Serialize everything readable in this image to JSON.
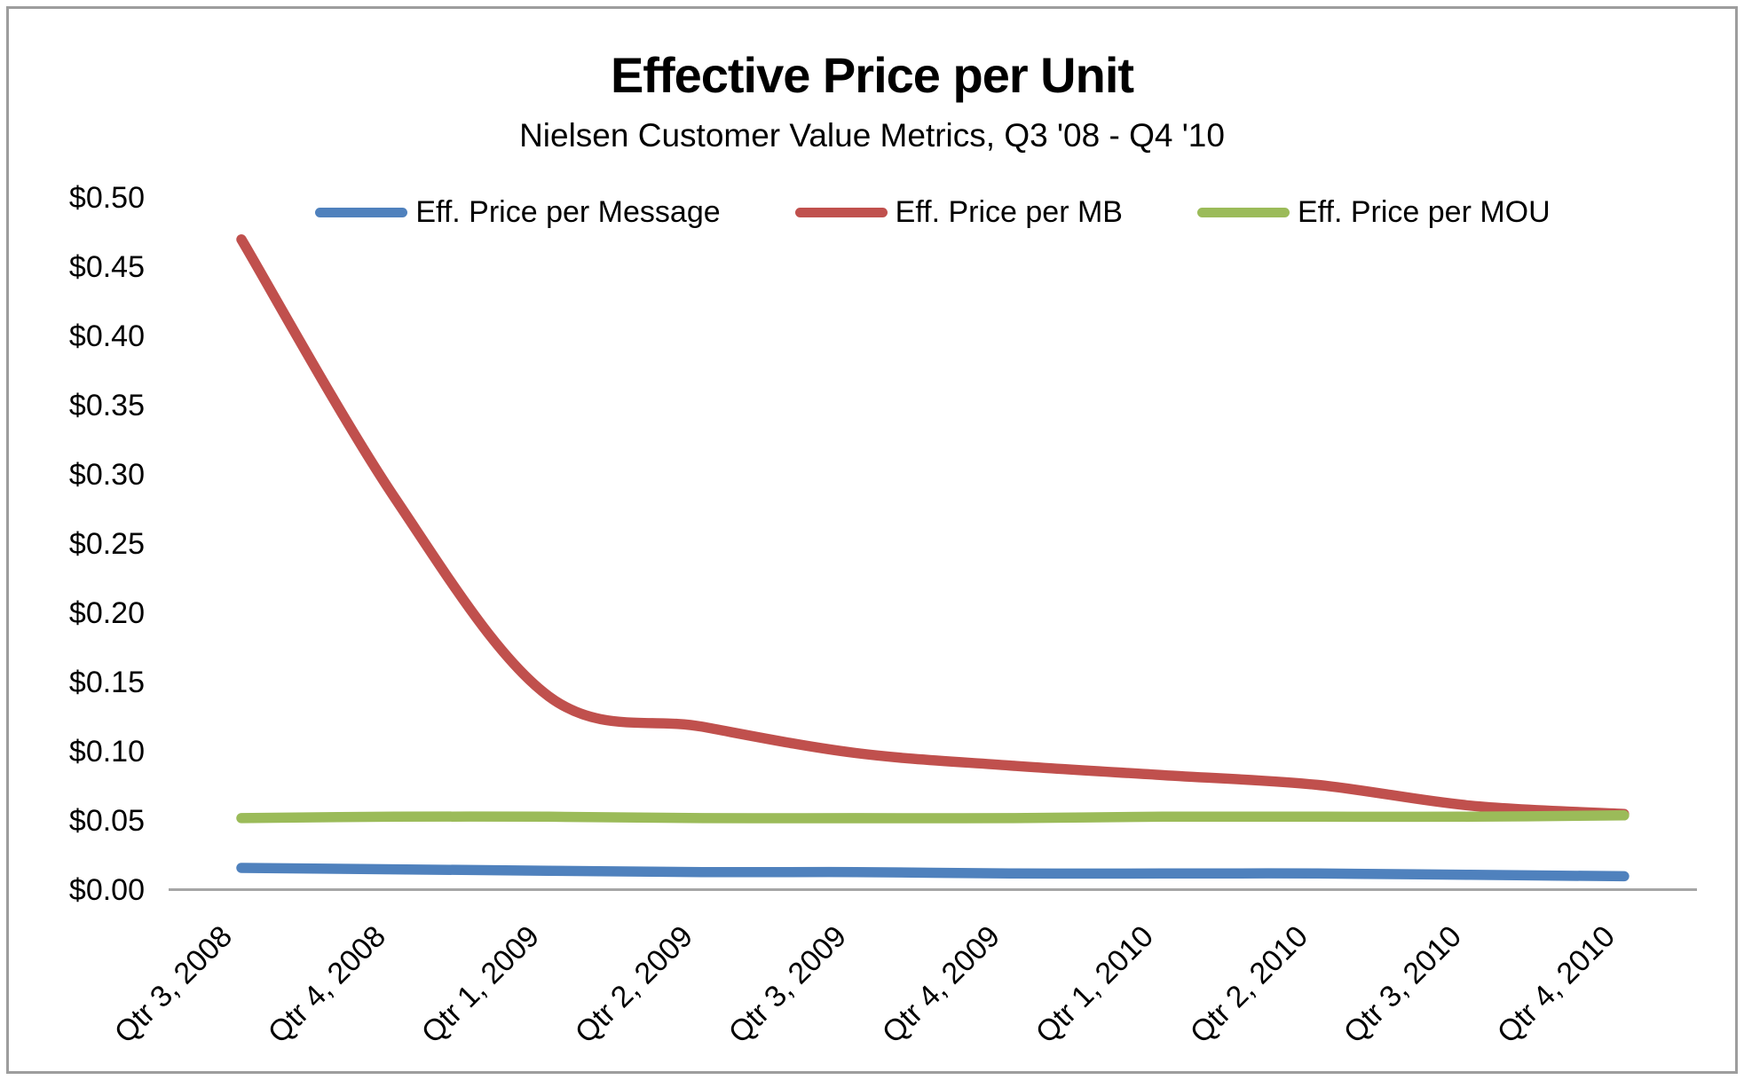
{
  "frame": {
    "border_color": "#9d9d9d",
    "background": "#ffffff",
    "axis_color": "#a6a6a6"
  },
  "chart_data": {
    "type": "line",
    "title": "Effective Price per Unit",
    "subtitle": "Nielsen Customer Value Metrics, Q3 '08 - Q4 '10",
    "categories": [
      "Qtr 3, 2008",
      "Qtr 4, 2008",
      "Qtr 1, 2009",
      "Qtr 2, 2009",
      "Qtr 3, 2009",
      "Qtr 4, 2009",
      "Qtr 1, 2010",
      "Qtr 2, 2010",
      "Qtr 3, 2010",
      "Qtr 4, 2010"
    ],
    "series": [
      {
        "name": "Eff. Price per Message",
        "color": "#4F81BD",
        "values": [
          0.016,
          0.015,
          0.014,
          0.013,
          0.013,
          0.012,
          0.012,
          0.012,
          0.011,
          0.01
        ]
      },
      {
        "name": "Eff. Price per MB",
        "color": "#C0504D",
        "values": [
          0.47,
          0.283,
          0.14,
          0.118,
          0.099,
          0.09,
          0.083,
          0.076,
          0.061,
          0.055
        ]
      },
      {
        "name": "Eff. Price per MOU",
        "color": "#9BBB59",
        "values": [
          0.052,
          0.053,
          0.053,
          0.052,
          0.052,
          0.052,
          0.053,
          0.053,
          0.053,
          0.054
        ]
      }
    ],
    "ylim": [
      0.0,
      0.5
    ],
    "y_tick_step": 0.05,
    "y_tick_labels": [
      "$0.50",
      "$0.45",
      "$0.40",
      "$0.35",
      "$0.30",
      "$0.25",
      "$0.20",
      "$0.15",
      "$0.10",
      "$0.05",
      "$0.00"
    ],
    "grid": false,
    "legend_position": "top",
    "line_style": "smoothed"
  }
}
